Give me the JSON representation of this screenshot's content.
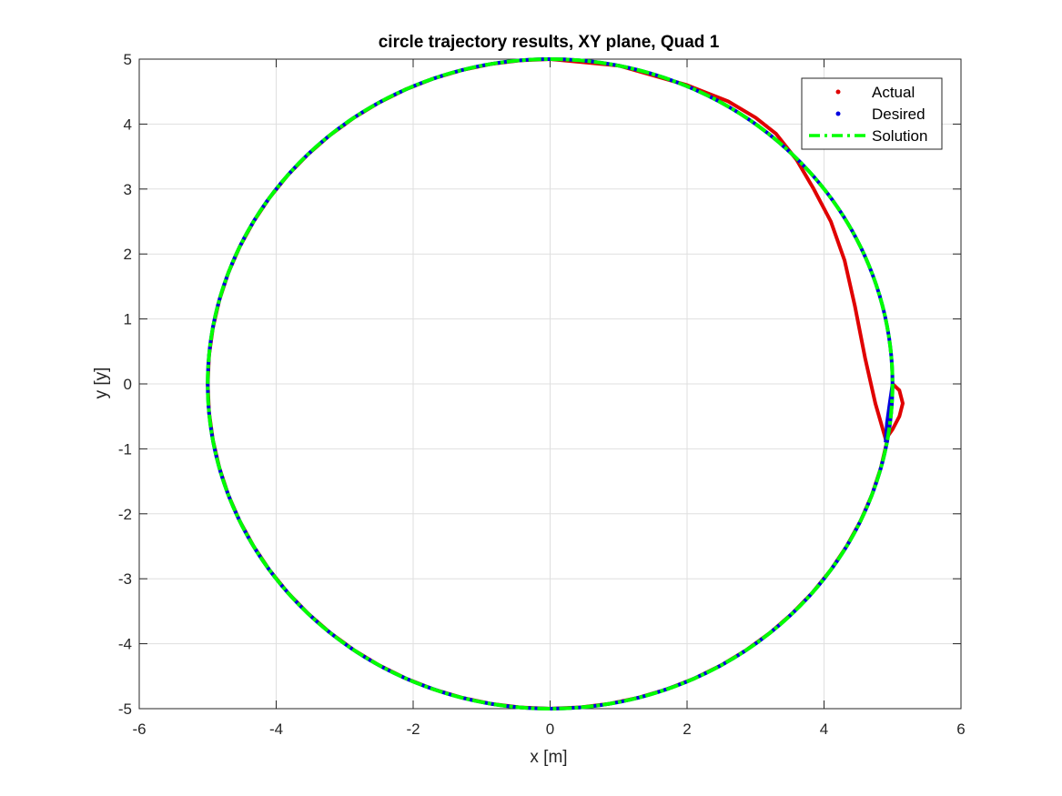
{
  "chart_data": {
    "type": "line",
    "title": "circle trajectory results, XY plane, Quad 1",
    "xlabel": "x [m]",
    "ylabel": "y [y]",
    "xlim": [
      -6,
      6
    ],
    "ylim": [
      -5,
      5
    ],
    "xticks": [
      -6,
      -4,
      -2,
      0,
      2,
      4,
      6
    ],
    "yticks": [
      -5,
      -4,
      -3,
      -2,
      -1,
      0,
      1,
      2,
      3,
      4,
      5
    ],
    "xtick_labels": [
      "-6",
      "-4",
      "-2",
      "0",
      "2",
      "4",
      "6"
    ],
    "ytick_labels": [
      "-5",
      "-4",
      "-3",
      "-2",
      "-1",
      "0",
      "1",
      "2",
      "3",
      "4",
      "5"
    ],
    "grid": true,
    "legend_position": "top-right",
    "series": [
      {
        "name": "Actual",
        "style": "dots",
        "color": "#e00000",
        "x": [
          5.0,
          5.1,
          5.15,
          5.1,
          5.0,
          4.9,
          4.75,
          4.6,
          4.45,
          4.3,
          4.1,
          3.85,
          3.6,
          3.3,
          3.0,
          2.6,
          2.0,
          1.0,
          0.0
        ],
        "y": [
          0.0,
          -0.1,
          -0.3,
          -0.5,
          -0.7,
          -0.85,
          -0.3,
          0.4,
          1.2,
          1.9,
          2.5,
          3.0,
          3.45,
          3.85,
          4.1,
          4.35,
          4.6,
          4.9,
          5.0
        ],
        "follows_circle_after": "top"
      },
      {
        "name": "Desired",
        "style": "dots",
        "color": "#0000e0",
        "x": [
          5.0,
          4.96,
          4.92,
          4.9
        ],
        "y": [
          0.0,
          -0.3,
          -0.6,
          -0.9
        ],
        "follows_circle_after": "bottom-right"
      },
      {
        "name": "Solution",
        "style": "dash-dot",
        "color": "#00ff00",
        "shape": "circle",
        "center": [
          0,
          0
        ],
        "radius": 5
      }
    ]
  }
}
